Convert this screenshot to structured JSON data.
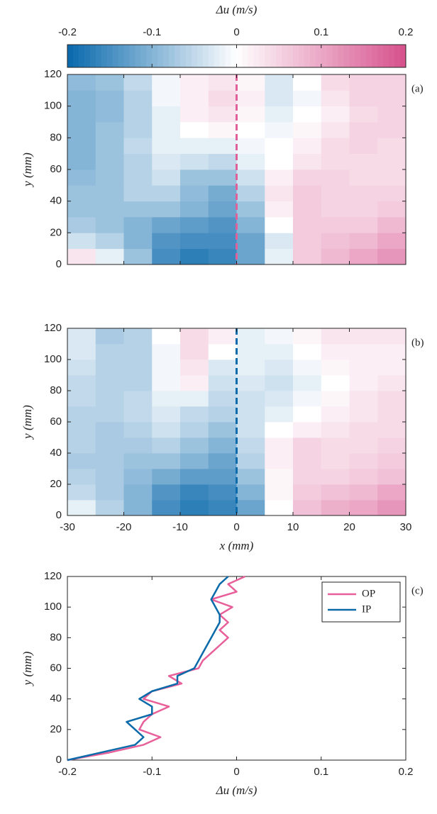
{
  "chart_data": [
    {
      "type": "heatmap",
      "annotation": "(a)",
      "ylabel": "y (mm)",
      "colorbar": {
        "label": "Δu (m/s)",
        "lim": [
          -0.2,
          0.2
        ],
        "ticks": [
          -0.2,
          -0.1,
          0,
          0.1,
          0.2
        ],
        "colormap": [
          "#0868ac",
          "#ffffff",
          "#d6508c"
        ]
      },
      "xlim": [
        -30,
        30
      ],
      "xticks": [
        -30,
        -20,
        -10,
        0,
        10,
        20,
        30
      ],
      "xtick_labels": false,
      "ylim": [
        0,
        120
      ],
      "yticks": [
        0,
        20,
        40,
        60,
        80,
        100,
        120
      ],
      "vline": 0,
      "vline_color": "#e0609a",
      "x_edges": [
        -30,
        -25,
        -20,
        -15,
        -10,
        -5,
        0,
        5,
        10,
        15,
        20,
        25,
        30
      ],
      "y_edges": [
        0,
        10,
        20,
        30,
        40,
        50,
        60,
        70,
        80,
        90,
        100,
        110,
        120
      ],
      "z": [
        [
          0.03,
          -0.02,
          -0.08,
          -0.15,
          -0.17,
          -0.16,
          -0.12,
          -0.02,
          0.06,
          0.08,
          0.1,
          0.12
        ],
        [
          -0.04,
          -0.06,
          -0.1,
          -0.14,
          -0.15,
          -0.15,
          -0.12,
          -0.03,
          0.06,
          0.07,
          0.08,
          0.1
        ],
        [
          -0.07,
          -0.08,
          -0.1,
          -0.12,
          -0.13,
          -0.14,
          -0.1,
          0.0,
          0.06,
          0.06,
          0.06,
          0.08
        ],
        [
          -0.08,
          -0.08,
          -0.08,
          -0.08,
          -0.1,
          -0.12,
          -0.08,
          0.02,
          0.06,
          0.05,
          0.05,
          0.06
        ],
        [
          -0.08,
          -0.08,
          -0.06,
          -0.06,
          -0.09,
          -0.11,
          -0.06,
          0.03,
          0.06,
          0.05,
          0.05,
          0.05
        ],
        [
          -0.09,
          -0.08,
          -0.06,
          -0.04,
          -0.08,
          -0.08,
          -0.04,
          0.02,
          0.05,
          0.05,
          0.04,
          0.04
        ],
        [
          -0.1,
          -0.08,
          -0.06,
          -0.03,
          -0.04,
          -0.05,
          -0.02,
          0.0,
          0.03,
          0.04,
          0.04,
          0.04
        ],
        [
          -0.1,
          -0.08,
          -0.05,
          -0.02,
          -0.02,
          -0.02,
          -0.01,
          0.0,
          0.02,
          0.04,
          0.05,
          0.04
        ],
        [
          -0.1,
          -0.08,
          -0.06,
          -0.02,
          0.0,
          0.01,
          0.0,
          -0.01,
          0.01,
          0.03,
          0.05,
          0.05
        ],
        [
          -0.1,
          -0.09,
          -0.06,
          -0.02,
          0.02,
          0.03,
          0.01,
          -0.02,
          0.0,
          0.02,
          0.04,
          0.05
        ],
        [
          -0.1,
          -0.09,
          -0.06,
          -0.01,
          0.02,
          0.04,
          0.02,
          -0.03,
          -0.01,
          0.03,
          0.05,
          0.05
        ],
        [
          -0.09,
          -0.08,
          -0.05,
          -0.01,
          0.02,
          0.03,
          0.01,
          -0.03,
          0.0,
          0.04,
          0.05,
          0.05
        ]
      ]
    },
    {
      "type": "heatmap",
      "annotation": "(b)",
      "ylabel": "y (mm)",
      "xlabel": "x (mm)",
      "xlim": [
        -30,
        30
      ],
      "xticks": [
        -30,
        -20,
        -10,
        0,
        10,
        20,
        30
      ],
      "xtick_labels": true,
      "ylim": [
        0,
        120
      ],
      "yticks": [
        0,
        20,
        40,
        60,
        80,
        100,
        120
      ],
      "vline": 0,
      "vline_color": "#0a6aaa",
      "x_edges": [
        -30,
        -25,
        -20,
        -15,
        -10,
        -5,
        0,
        5,
        10,
        15,
        20,
        25,
        30
      ],
      "y_edges": [
        0,
        10,
        20,
        30,
        40,
        50,
        60,
        70,
        80,
        90,
        100,
        110,
        120
      ],
      "z": [
        [
          -0.02,
          -0.06,
          -0.1,
          -0.15,
          -0.17,
          -0.16,
          -0.12,
          0.0,
          0.07,
          0.09,
          0.1,
          0.12
        ],
        [
          -0.05,
          -0.07,
          -0.1,
          -0.14,
          -0.16,
          -0.15,
          -0.1,
          0.01,
          0.06,
          0.07,
          0.08,
          0.1
        ],
        [
          -0.06,
          -0.07,
          -0.09,
          -0.11,
          -0.13,
          -0.13,
          -0.08,
          0.01,
          0.05,
          0.05,
          0.06,
          0.07
        ],
        [
          -0.07,
          -0.07,
          -0.08,
          -0.08,
          -0.1,
          -0.12,
          -0.06,
          0.02,
          0.05,
          0.04,
          0.05,
          0.06
        ],
        [
          -0.06,
          -0.07,
          -0.07,
          -0.06,
          -0.08,
          -0.1,
          -0.05,
          0.02,
          0.05,
          0.04,
          0.04,
          0.05
        ],
        [
          -0.06,
          -0.07,
          -0.06,
          -0.04,
          -0.06,
          -0.08,
          -0.04,
          0.0,
          0.02,
          0.03,
          0.04,
          0.04
        ],
        [
          -0.06,
          -0.06,
          -0.05,
          -0.03,
          -0.05,
          -0.06,
          -0.04,
          -0.02,
          0.0,
          0.02,
          0.03,
          0.04
        ],
        [
          -0.05,
          -0.06,
          -0.05,
          -0.02,
          -0.02,
          -0.05,
          -0.04,
          -0.03,
          -0.01,
          0.01,
          0.03,
          0.04
        ],
        [
          -0.05,
          -0.06,
          -0.06,
          -0.01,
          0.02,
          -0.04,
          -0.03,
          -0.04,
          -0.02,
          0.0,
          0.02,
          0.03
        ],
        [
          -0.04,
          -0.06,
          -0.06,
          -0.01,
          0.03,
          -0.03,
          -0.02,
          -0.03,
          -0.01,
          0.01,
          0.02,
          0.02
        ],
        [
          -0.03,
          -0.06,
          -0.06,
          -0.01,
          0.04,
          0.0,
          -0.02,
          -0.02,
          0.0,
          0.02,
          0.02,
          0.02
        ],
        [
          -0.03,
          -0.07,
          -0.06,
          0.0,
          0.04,
          0.02,
          -0.02,
          -0.01,
          0.01,
          0.03,
          0.03,
          0.03
        ]
      ]
    },
    {
      "type": "line",
      "annotation": "(c)",
      "ylabel": "y (mm)",
      "xlabel": "Δu (m/s)",
      "xlim": [
        -0.2,
        0.2
      ],
      "xticks": [
        -0.2,
        -0.1,
        0,
        0.1,
        0.2
      ],
      "xtick_labels": true,
      "ylim": [
        0,
        120
      ],
      "yticks": [
        0,
        20,
        40,
        60,
        80,
        100,
        120
      ],
      "legend": "upper right",
      "y": [
        0,
        5,
        10,
        15,
        20,
        25,
        30,
        35,
        40,
        45,
        50,
        55,
        60,
        65,
        70,
        75,
        80,
        85,
        90,
        95,
        100,
        105,
        110,
        115,
        120
      ],
      "series": [
        {
          "name": "OP",
          "color": "#e8609a",
          "values": [
            -0.2,
            -0.15,
            -0.11,
            -0.09,
            -0.115,
            -0.11,
            -0.1,
            -0.08,
            -0.11,
            -0.1,
            -0.065,
            -0.08,
            -0.045,
            -0.04,
            -0.03,
            -0.02,
            -0.01,
            -0.02,
            -0.01,
            -0.02,
            -0.005,
            -0.03,
            0.0,
            -0.01,
            0.01
          ]
        },
        {
          "name": "IP",
          "color": "#0a6aaa",
          "values": [
            -0.2,
            -0.16,
            -0.12,
            -0.11,
            -0.12,
            -0.13,
            -0.1,
            -0.1,
            -0.115,
            -0.1,
            -0.07,
            -0.07,
            -0.05,
            -0.045,
            -0.04,
            -0.035,
            -0.03,
            -0.025,
            -0.02,
            -0.02,
            -0.025,
            -0.03,
            -0.025,
            -0.02,
            -0.01
          ]
        }
      ]
    }
  ]
}
